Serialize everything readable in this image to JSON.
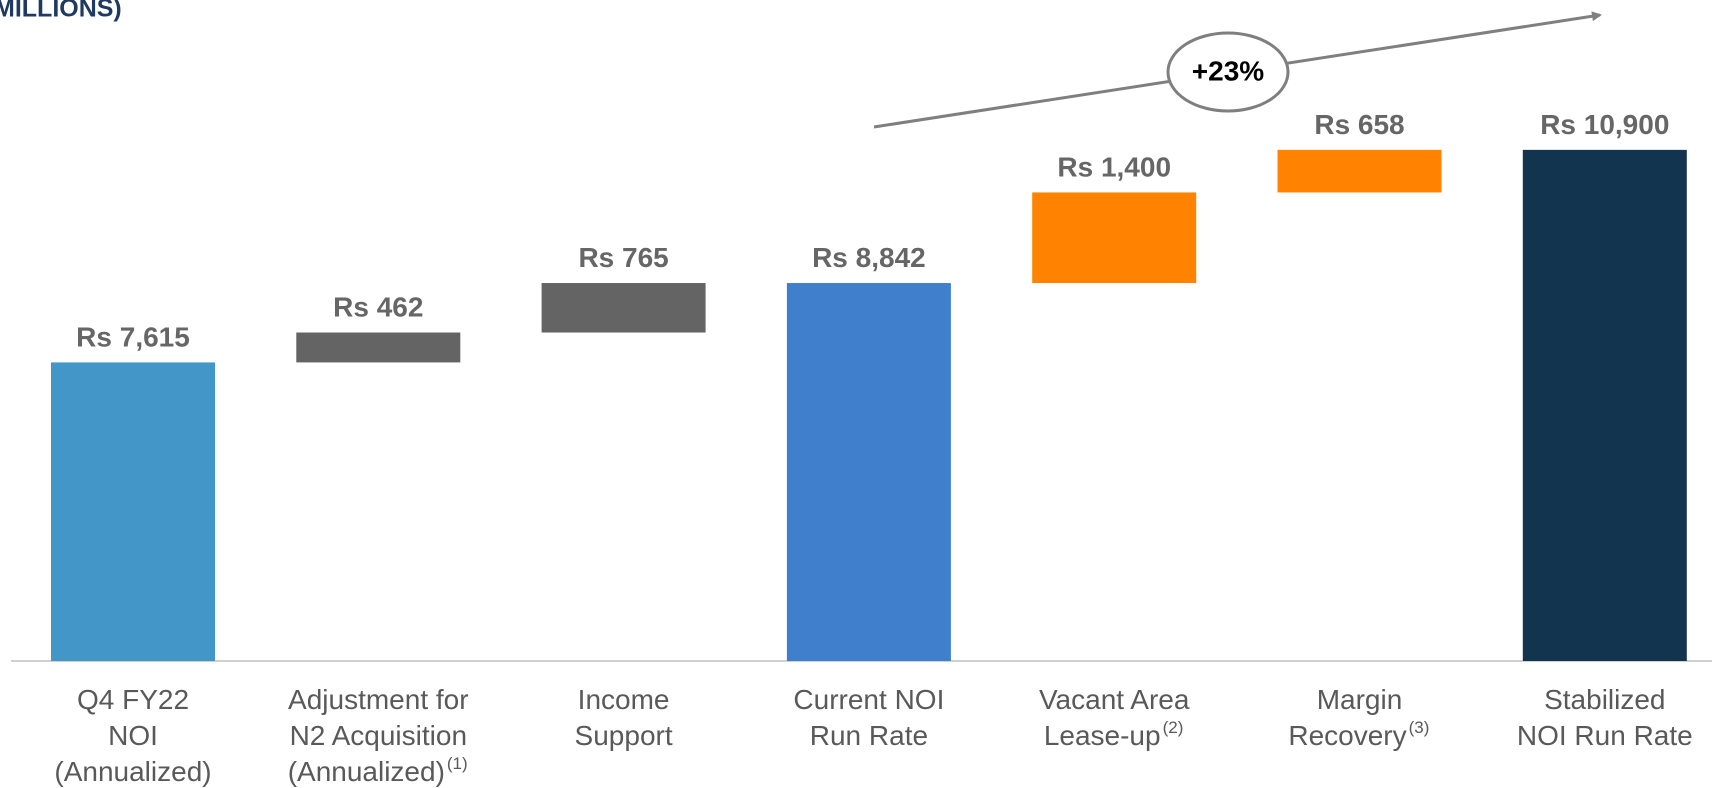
{
  "chart_data": {
    "type": "waterfall",
    "title": "MILLIONS)",
    "categories": [
      [
        "Q4 FY22",
        "NOI",
        "(Annualized)"
      ],
      [
        "Adjustment for",
        "N2 Acquisition",
        "(Annualized)"
      ],
      [
        "Income",
        "Support"
      ],
      [
        "Current NOI",
        "Run Rate"
      ],
      [
        "Vacant Area",
        "Lease-up"
      ],
      [
        "Margin",
        "Recovery"
      ],
      [
        "Stabilized",
        "NOI Run Rate"
      ]
    ],
    "footnotes": [
      null,
      "(1)",
      null,
      null,
      "(2)",
      "(3)",
      null
    ],
    "values": [
      7615,
      462,
      765,
      8842,
      1400,
      658,
      10900
    ],
    "value_labels": [
      "Rs 7,615",
      "Rs 462",
      "Rs 765",
      "Rs 8,842",
      "Rs 1,400",
      "Rs 658",
      "Rs 10,900"
    ],
    "totals": [
      true,
      false,
      false,
      true,
      false,
      false,
      true
    ],
    "colors": [
      "#4397c8",
      "#646464",
      "#646464",
      "#3f7fcb",
      "#ff8300",
      "#ff8300",
      "#12344f"
    ],
    "ylim": [
      3000,
      13000
    ],
    "annotation": "+23%"
  }
}
